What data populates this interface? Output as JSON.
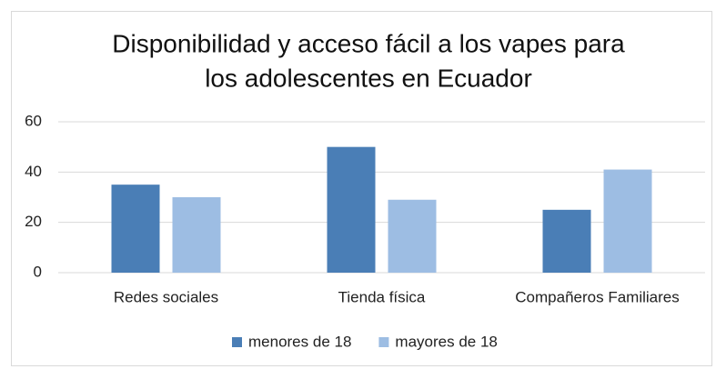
{
  "chart_data": {
    "type": "bar",
    "title": [
      "Disponibilidad y acceso fácil a los vapes para",
      "los adolescentes en Ecuador"
    ],
    "categories": [
      "Redes sociales",
      "Tienda física",
      "Compañeros Familiares"
    ],
    "series": [
      {
        "name": "menores de 18",
        "color": "#4a7eb6",
        "values": [
          35,
          50,
          25
        ]
      },
      {
        "name": "mayores de 18",
        "color": "#9dbde3",
        "values": [
          30,
          29,
          41
        ]
      }
    ],
    "ylim": [
      0,
      60
    ],
    "yticks": [
      0,
      20,
      40,
      60
    ],
    "grid": true,
    "legend": "bottom"
  }
}
